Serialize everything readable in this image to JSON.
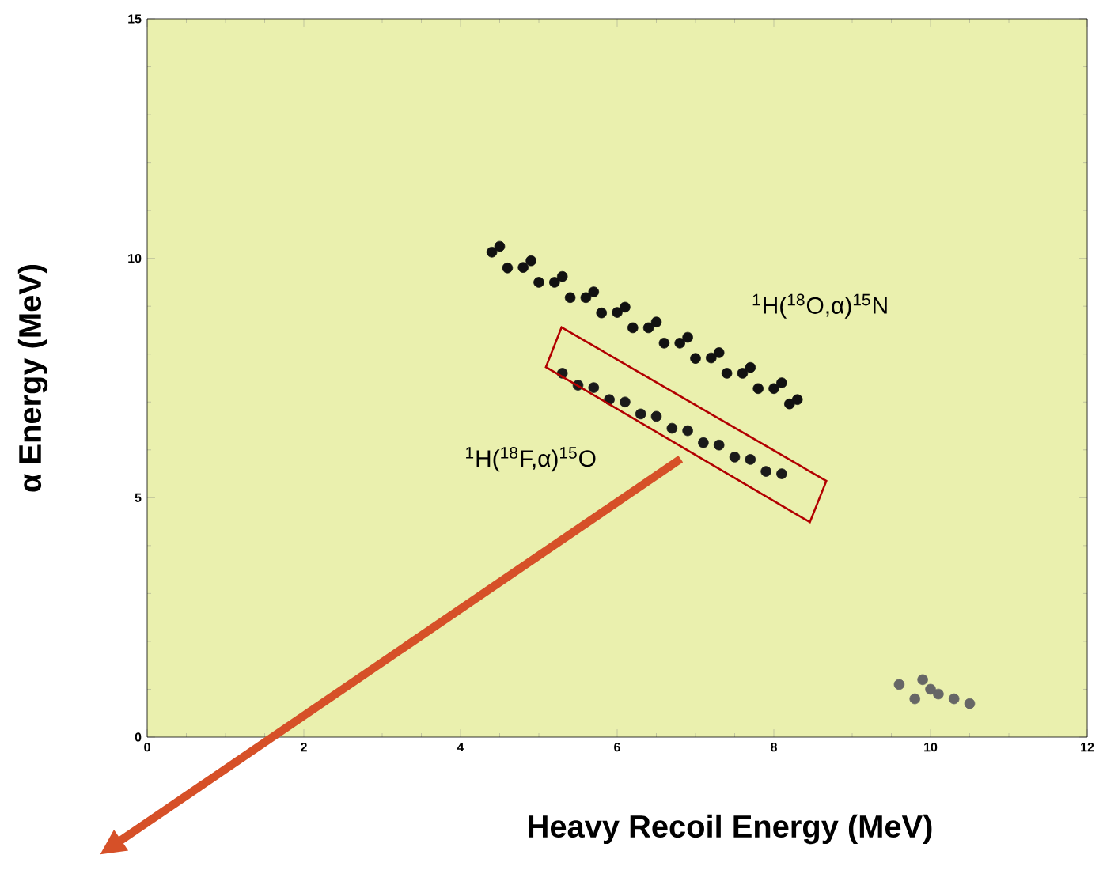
{
  "chart_data": {
    "type": "scatter",
    "xlabel": "Heavy Recoil Energy (MeV)",
    "ylabel": "α Energy (MeV)",
    "xlim": [
      0,
      12
    ],
    "ylim": [
      0,
      15
    ],
    "xticks": [
      0,
      2,
      4,
      6,
      8,
      10,
      12
    ],
    "yticks": [
      0,
      5,
      10,
      15
    ],
    "grid": false,
    "series": [
      {
        "color": "#111111",
        "x": [
          4.4,
          4.8,
          5.2,
          5.6,
          6.0,
          6.4,
          6.8,
          7.2,
          7.6,
          8.0,
          8.3,
          4.5,
          4.9,
          5.3,
          5.7,
          6.1,
          6.5,
          6.9,
          7.3,
          7.7,
          8.1,
          4.6,
          5.0,
          5.4,
          5.8,
          6.2,
          6.6,
          7.0,
          7.4,
          7.8,
          8.2
        ],
        "values": [
          10.13,
          9.81,
          9.5,
          9.18,
          8.87,
          8.55,
          8.23,
          7.92,
          7.6,
          7.28,
          7.05,
          10.25,
          9.95,
          9.62,
          9.3,
          8.98,
          8.67,
          8.35,
          8.03,
          7.72,
          7.4,
          9.8,
          9.5,
          9.18,
          8.86,
          8.55,
          8.23,
          7.91,
          7.6,
          7.28,
          6.96
        ]
      },
      {
        "color": "#1a1a1a",
        "x": [
          5.3,
          5.7,
          6.1,
          6.5,
          6.9,
          7.3,
          7.7,
          8.1,
          5.5,
          5.9,
          6.3,
          6.7,
          7.1,
          7.5,
          7.9
        ],
        "values": [
          7.6,
          7.3,
          7.0,
          6.7,
          6.4,
          6.1,
          5.8,
          5.5,
          7.35,
          7.05,
          6.75,
          6.45,
          6.15,
          5.85,
          5.55
        ]
      },
      {
        "color": "#666666",
        "x": [
          9.6,
          9.9,
          10.1,
          10.3,
          10.0,
          10.5,
          9.8
        ],
        "values": [
          1.1,
          1.2,
          0.9,
          0.8,
          1.0,
          0.7,
          0.8
        ]
      }
    ],
    "annotations": [
      "$^{1}$H($^{18}$O,α)$^{15}$N",
      "$^{1}$H($^{18}$F,α)$^{15}$O"
    ]
  }
}
